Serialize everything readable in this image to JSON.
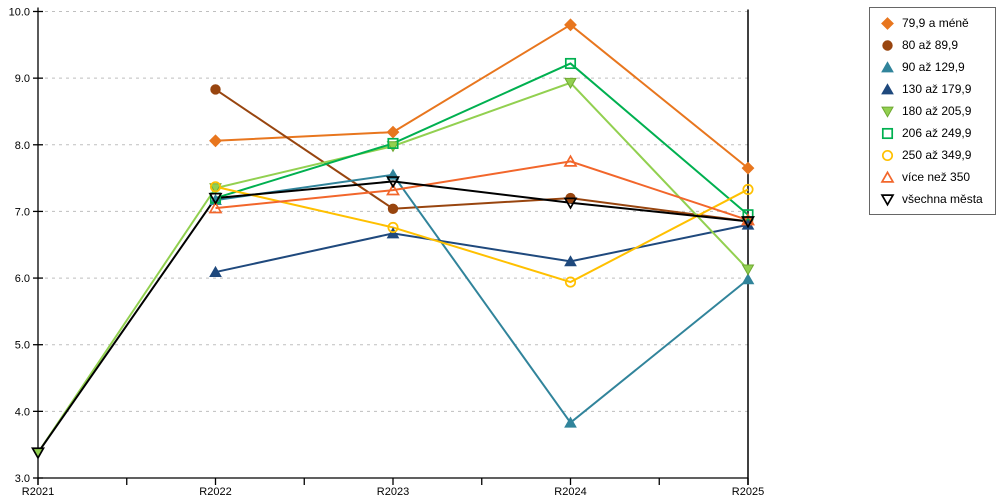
{
  "chart_data": {
    "type": "line",
    "categories": [
      "R2021",
      "R2022",
      "R2023",
      "R2024",
      "R2025"
    ],
    "ylim": [
      3.0,
      10.0
    ],
    "ytick_step": 1.0,
    "ytick_labels": [
      "3.0",
      "4.0",
      "5.0",
      "6.0",
      "7.0",
      "8.0",
      "9.0",
      "10.0"
    ],
    "grid": "horizontal dashed gridlines at each 1.0 from 4.0 to 10.0",
    "legend_position": "right",
    "highlight_vline_at_category": "R2025",
    "axis_color": "#000000",
    "grid_color": "#bfbfbf",
    "series": [
      {
        "name": "79,9 a méně",
        "marker": "diamond-filled",
        "color": "#e8761e",
        "values": [
          null,
          8.06,
          8.19,
          9.8,
          7.65
        ]
      },
      {
        "name": "80 až 89,9",
        "marker": "circle-filled",
        "color": "#98450f",
        "values": [
          null,
          8.83,
          7.04,
          7.2,
          6.85
        ]
      },
      {
        "name": "90 až 129,9",
        "marker": "triangle-up-filled",
        "color": "#31849b",
        "values": [
          null,
          7.17,
          7.55,
          3.83,
          5.98
        ]
      },
      {
        "name": "130 až 179,9",
        "marker": "triangle-up-filled",
        "color": "#1f497d",
        "values": [
          null,
          6.09,
          6.67,
          6.25,
          6.8
        ]
      },
      {
        "name": "180 až 205,9",
        "marker": "triangle-down-filled",
        "color": "#92d050",
        "marker_stroke": "#6fa832",
        "values": [
          3.38,
          7.35,
          7.98,
          8.93,
          6.13
        ]
      },
      {
        "name": "206 až 249,9",
        "marker": "square-open",
        "color": "#00b050",
        "values": [
          null,
          7.2,
          8.02,
          9.22,
          6.95
        ]
      },
      {
        "name": "250 až 349,9",
        "marker": "circle-open",
        "color": "#ffc000",
        "values": [
          null,
          7.37,
          6.76,
          5.94,
          7.33
        ]
      },
      {
        "name": "více než 350",
        "marker": "triangle-up-open",
        "color": "#f2662b",
        "values": [
          null,
          7.05,
          7.32,
          7.75,
          6.87
        ]
      },
      {
        "name": "všechna města",
        "marker": "triangle-down-open",
        "color": "#000000",
        "values": [
          3.38,
          7.2,
          7.45,
          7.13,
          6.85
        ]
      }
    ]
  }
}
